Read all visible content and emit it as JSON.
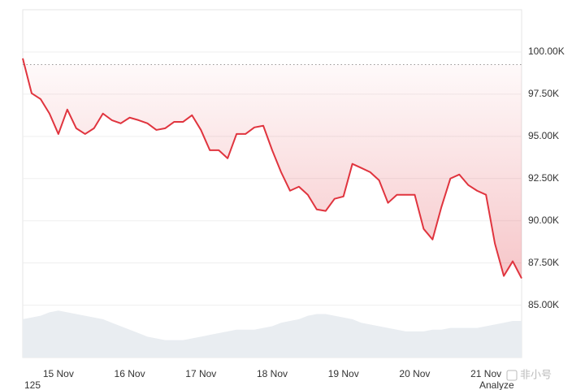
{
  "chart_data": {
    "type": "line",
    "categories": [
      null,
      null,
      null,
      null,
      "15 Nov",
      null,
      null,
      null,
      null,
      null,
      null,
      null,
      "16 Nov",
      null,
      null,
      null,
      null,
      null,
      null,
      null,
      "17 Nov",
      null,
      null,
      null,
      null,
      null,
      null,
      null,
      "18 Nov",
      null,
      null,
      null,
      null,
      null,
      null,
      null,
      "19 Nov",
      null,
      null,
      null,
      null,
      null,
      null,
      null,
      "20 Nov",
      null,
      null,
      null,
      null,
      null,
      null,
      null,
      "21 Nov",
      null,
      null,
      null,
      null
    ],
    "values": [
      99620,
      97550,
      97210,
      96350,
      95140,
      96590,
      95480,
      95140,
      95480,
      96350,
      95960,
      95770,
      96110,
      95960,
      95770,
      95380,
      95480,
      95860,
      95860,
      96250,
      95380,
      94180,
      94180,
      93700,
      95140,
      95140,
      95530,
      95630,
      94180,
      92880,
      91780,
      92020,
      91540,
      90670,
      90580,
      91300,
      91440,
      93370,
      93130,
      92880,
      92400,
      91060,
      91540,
      91540,
      91540,
      89520,
      88890,
      90820,
      92500,
      92740,
      92120,
      91780,
      91540,
      88650,
      86730,
      87600,
      86590
    ],
    "color": "#e0343e",
    "baseline": 99250,
    "volume": [
      11,
      11.5,
      12,
      13,
      13.5,
      13,
      12.5,
      12,
      11.5,
      11,
      10,
      9,
      8,
      7,
      6,
      5.5,
      5,
      5,
      5,
      5.5,
      6,
      6.5,
      7,
      7.5,
      8,
      8,
      8,
      8.5,
      9,
      10,
      10.5,
      11,
      12,
      12.5,
      12.5,
      12,
      11.5,
      11,
      10,
      9.5,
      9,
      8.5,
      8,
      7.5,
      7.5,
      7.5,
      8,
      8,
      8.5,
      8.5,
      8.5,
      8.5,
      9,
      9.5,
      10,
      10.5,
      10.5
    ],
    "volume_color": "#e9edf1",
    "y2lim": [
      0,
      100
    ],
    "ylim": [
      81900,
      102500
    ],
    "yticks": [
      {
        "value": 85000,
        "label": "85.00K"
      },
      {
        "value": 87500,
        "label": "87.50K"
      },
      {
        "value": 90000,
        "label": "90.00K"
      },
      {
        "value": 92500,
        "label": "92.50K"
      },
      {
        "value": 95000,
        "label": "95.00K"
      },
      {
        "value": 97500,
        "label": "97.50K"
      },
      {
        "value": 100000,
        "label": "100.00K"
      }
    ],
    "grid": true,
    "footer_left": "125",
    "footer_right": "Analyze",
    "watermark": "非小号"
  }
}
